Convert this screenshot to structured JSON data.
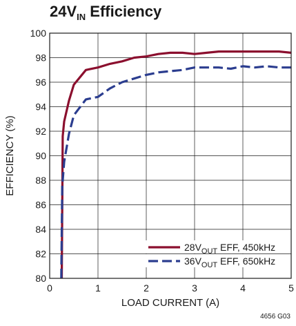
{
  "title": {
    "main": "24V",
    "sub": "IN",
    "rest": " Efficiency"
  },
  "figure_code": "4656 G03",
  "chart_data": {
    "type": "line",
    "title": "24VIN Efficiency",
    "xlabel": "LOAD CURRENT (A)",
    "ylabel": "EFFICIENCY (%)",
    "xlim": [
      0,
      5
    ],
    "ylim": [
      80,
      100
    ],
    "x_ticks": [
      "0",
      "1",
      "2",
      "3",
      "4",
      "5"
    ],
    "y_ticks": [
      "80",
      "82",
      "84",
      "86",
      "88",
      "90",
      "92",
      "94",
      "96",
      "98",
      "100"
    ],
    "grid": true,
    "legend_position": "bottom-right",
    "series": [
      {
        "label_main": "28V",
        "label_sub": "OUT",
        "label_rest": " EFF, 450kHz",
        "color": "#8b0f2e",
        "style": "solid",
        "x": [
          0.25,
          0.27,
          0.3,
          0.4,
          0.5,
          0.75,
          1.0,
          1.25,
          1.5,
          1.75,
          2.0,
          2.25,
          2.5,
          2.75,
          3.0,
          3.25,
          3.5,
          3.75,
          4.0,
          4.25,
          4.5,
          4.75,
          5.0
        ],
        "y": [
          80.0,
          91.6,
          92.8,
          94.5,
          95.8,
          97.0,
          97.2,
          97.5,
          97.7,
          98.0,
          98.1,
          98.3,
          98.4,
          98.4,
          98.3,
          98.4,
          98.5,
          98.5,
          98.5,
          98.5,
          98.5,
          98.5,
          98.4
        ]
      },
      {
        "label_main": "36V",
        "label_sub": "OUT",
        "label_rest": " EFF, 650kHz",
        "color": "#2b3d8f",
        "style": "dashed",
        "x": [
          0.24,
          0.26,
          0.3,
          0.4,
          0.5,
          0.75,
          1.0,
          1.25,
          1.5,
          1.75,
          2.0,
          2.25,
          2.5,
          2.75,
          3.0,
          3.25,
          3.5,
          3.75,
          4.0,
          4.25,
          4.5,
          4.75,
          5.0
        ],
        "y": [
          80.0,
          87.5,
          89.5,
          91.8,
          93.3,
          94.6,
          94.8,
          95.5,
          96.0,
          96.3,
          96.6,
          96.8,
          96.9,
          97.0,
          97.2,
          97.2,
          97.2,
          97.1,
          97.3,
          97.2,
          97.3,
          97.2,
          97.2
        ]
      }
    ]
  }
}
